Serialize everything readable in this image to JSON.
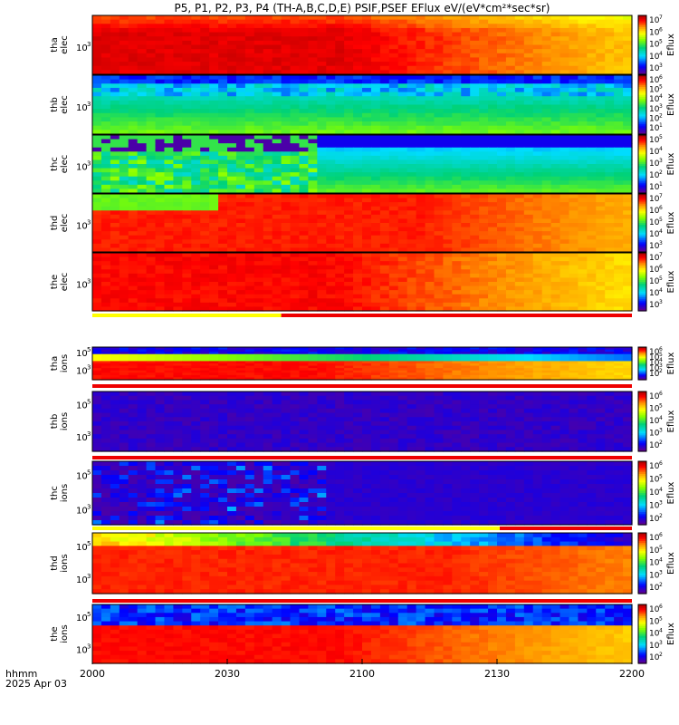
{
  "chart_data": {
    "type": "heatmap",
    "title": "P5, P1, P2, P3, P4 (TH-A,B,C,D,E) PSIF,PSEF EFlux eV/(eV*cm²*sec*sr)",
    "x_ticks": [
      "2000",
      "2030",
      "2100",
      "2130",
      "2200"
    ],
    "x_range": [
      "2000",
      "2200"
    ],
    "x_corner_label": [
      "hhmm",
      "2025 Apr 03"
    ],
    "colorbar_label": "Eflux",
    "panels": [
      {
        "ylabel": [
          "tha",
          "elec"
        ],
        "ytick": "10",
        "ytick_exp": "3",
        "cbar_ticks": [
          "7",
          "6",
          "5",
          "4",
          "3"
        ]
      },
      {
        "ylabel": [
          "thb",
          "elec"
        ],
        "ytick": "10",
        "ytick_exp": "3",
        "cbar_ticks": [
          "6",
          "5",
          "4",
          "3",
          "2",
          "1"
        ]
      },
      {
        "ylabel": [
          "thc",
          "elec"
        ],
        "ytick": "10",
        "ytick_exp": "3",
        "cbar_ticks": [
          "5",
          "4",
          "3",
          "2",
          "1"
        ]
      },
      {
        "ylabel": [
          "thd",
          "elec"
        ],
        "ytick": "10",
        "ytick_exp": "3",
        "cbar_ticks": [
          "7",
          "6",
          "5",
          "4",
          "3"
        ]
      },
      {
        "ylabel": [
          "the",
          "elec"
        ],
        "ytick": "10",
        "ytick_exp": "3",
        "cbar_ticks": [
          "7",
          "6",
          "5",
          "4",
          "3"
        ]
      },
      {
        "ylabel": [
          "tha",
          "ions"
        ],
        "ytick": "10",
        "ytick_exp": "3",
        "ytick2_exp": "5",
        "cbar_ticks": [
          "6",
          "5",
          "4",
          "3",
          "2"
        ]
      },
      {
        "ylabel": [
          "thb",
          "ions"
        ],
        "ytick": "10",
        "ytick_exp": "3",
        "ytick2_exp": "5",
        "cbar_ticks": [
          "6",
          "5",
          "4",
          "3",
          "2"
        ]
      },
      {
        "ylabel": [
          "thc",
          "ions"
        ],
        "ytick": "10",
        "ytick_exp": "3",
        "ytick2_exp": "5",
        "cbar_ticks": [
          "6",
          "5",
          "4",
          "3",
          "2"
        ]
      },
      {
        "ylabel": [
          "thd",
          "ions"
        ],
        "ytick": "10",
        "ytick_exp": "3",
        "ytick2_exp": "5",
        "cbar_ticks": [
          "6",
          "5",
          "4",
          "3",
          "2"
        ]
      },
      {
        "ylabel": [
          "the",
          "ions"
        ],
        "ytick": "10",
        "ytick_exp": "3",
        "ytick2_exp": "5",
        "cbar_ticks": [
          "6",
          "5",
          "4",
          "3",
          "2"
        ]
      }
    ]
  }
}
